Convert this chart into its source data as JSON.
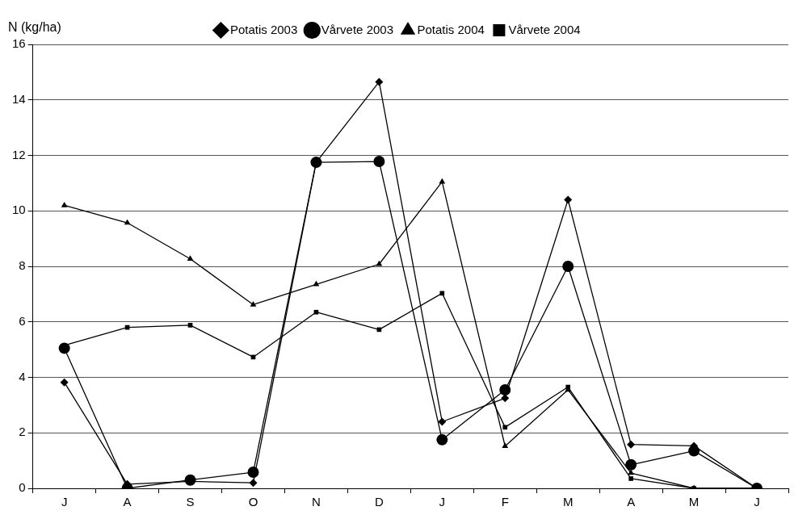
{
  "chart_data": {
    "type": "line",
    "ylabel": "N (kg/ha)",
    "categories": [
      "J",
      "A",
      "S",
      "O",
      "N",
      "D",
      "J",
      "F",
      "M",
      "A",
      "M",
      "J"
    ],
    "ylim": [
      0,
      16
    ],
    "yticks": [
      0,
      2,
      4,
      6,
      8,
      10,
      12,
      14,
      16
    ],
    "grid": "y",
    "legend": "top",
    "line_style": "solid",
    "series": [
      {
        "name": "Potatis 2003",
        "color": "#000000",
        "marker": "diamond",
        "values": [
          3.82,
          0.15,
          0.25,
          0.2,
          11.75,
          14.65,
          2.4,
          3.25,
          10.4,
          1.58,
          1.53,
          0
        ]
      },
      {
        "name": "Vårvete 2003",
        "color": "#000000",
        "marker": "circle",
        "values": [
          5.05,
          0,
          0.3,
          0.58,
          11.75,
          11.78,
          1.75,
          3.55,
          8.0,
          0.85,
          1.35,
          0
        ]
      },
      {
        "name": "Potatis 2004",
        "color": "#000000",
        "marker": "triangle",
        "values": [
          10.2,
          9.57,
          8.27,
          6.62,
          7.35,
          8.08,
          11.05,
          1.52,
          3.55,
          0.55,
          0,
          0
        ]
      },
      {
        "name": "Vårvete 2004",
        "color": "#000000",
        "marker": "square",
        "values": [
          5.15,
          5.8,
          5.88,
          4.73,
          6.35,
          5.72,
          7.03,
          2.2,
          3.65,
          0.35,
          0,
          0
        ]
      }
    ]
  }
}
